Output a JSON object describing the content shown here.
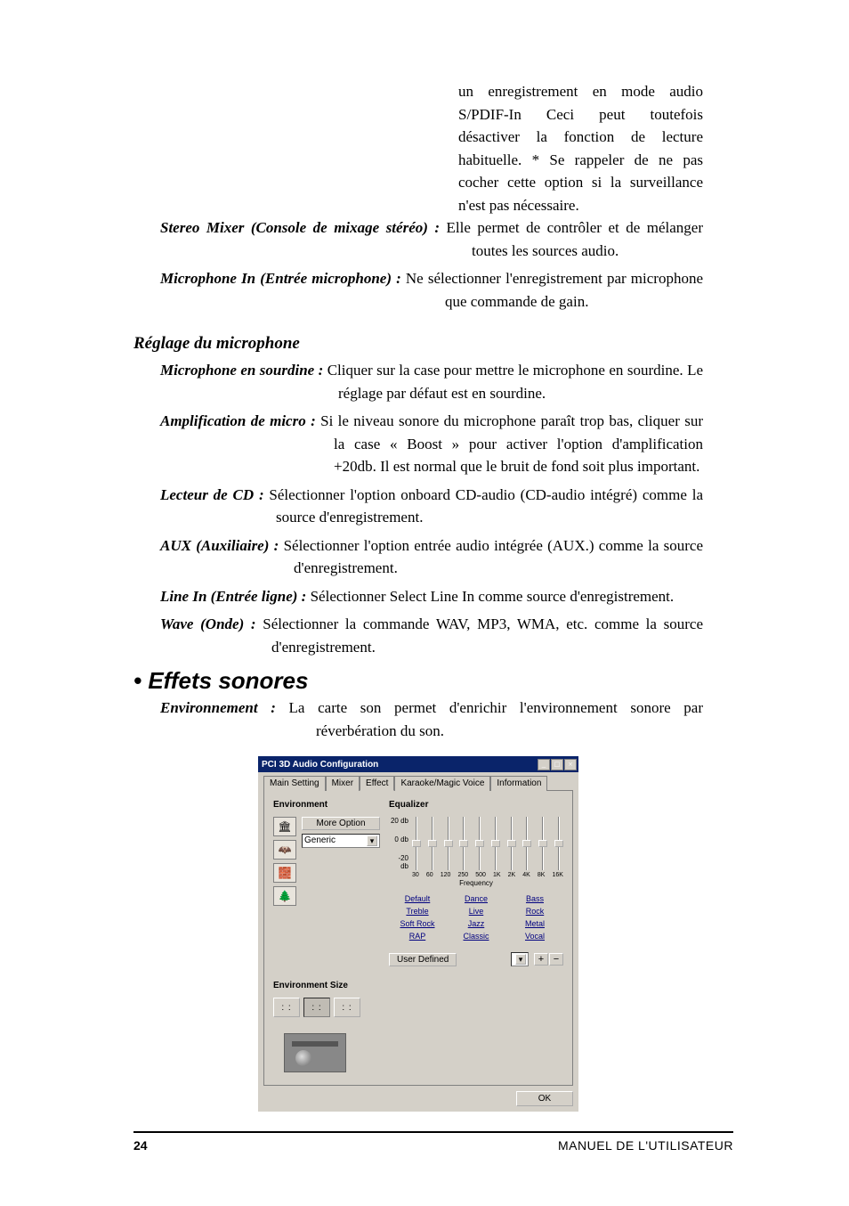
{
  "intro_block": {
    "text1": "un enregistrement en mode audio S/PDIF-In Ceci peut toutefois désactiver la fonction de lecture habituelle. * Se rappeler de ne pas cocher cette option si la surveillance n'est pas nécessaire.",
    "left_pad": "365px"
  },
  "items": [
    {
      "term": "Stereo Mixer (Console de mixage stéréo) : ",
      "body": "Elle permet de contrôler et de mélanger toutes les sources audio.",
      "rest_indent": "380px",
      "first_indent": "30px"
    },
    {
      "term": "Microphone In (Entrée microphone) : ",
      "body": "Ne sélectionner l'enregistrement par microphone que commande de gain.",
      "rest_indent": "350px",
      "first_indent": "30px"
    }
  ],
  "mic_heading": "Réglage du microphone",
  "mic_items": [
    {
      "term": "Microphone en sourdine : ",
      "body": "Cliquer sur la case pour mettre le microphone en sourdine. Le réglage par défaut est en sourdine.",
      "rest_indent": "230px",
      "first_indent": "30px"
    },
    {
      "term": "Amplification de micro : ",
      "body": "Si le niveau sonore du microphone paraît trop bas, cliquer sur la case « Boost » pour activer l'option d'amplification +20db. Il est normal que le bruit de fond soit plus important.",
      "rest_indent": "225px",
      "first_indent": "30px"
    },
    {
      "term": "Lecteur de CD : ",
      "body": "Sélectionner l'option onboard CD-audio (CD-audio intégré) comme la source d'enregistrement.",
      "rest_indent": "160px",
      "first_indent": "30px"
    },
    {
      "term": "AUX (Auxiliaire) : ",
      "body": "Sélectionner l'option entrée audio intégrée (AUX.) comme la source d'enregistrement.",
      "rest_indent": "180px",
      "first_indent": "30px"
    },
    {
      "term": "Line In (Entrée ligne) : ",
      "body": "Sélectionner Select Line In comme source d'enregistrement.",
      "rest_indent": "225px",
      "first_indent": "30px"
    },
    {
      "term": "Wave (Onde) : ",
      "body": "Sélectionner la commande WAV, MP3, WMA, etc. comme la source d'enregistrement.",
      "rest_indent": "155px",
      "first_indent": "30px"
    }
  ],
  "effets_heading": "• Effets sonores",
  "env_item": {
    "term": "Environnement : ",
    "body": "La carte son permet d'enrichir l'environnement sonore par réverbération du son.",
    "rest_indent": "205px",
    "first_indent": "30px"
  },
  "dialog": {
    "title": "PCI 3D Audio Configuration",
    "tabs": [
      "Main Setting",
      "Mixer",
      "Effect",
      "Karaoke/Magic Voice",
      "Information"
    ],
    "active_tab": 2,
    "env": {
      "title": "Environment",
      "more_btn": "More Option",
      "preset": "Generic"
    },
    "env_size_title": "Environment Size",
    "eq": {
      "title": "Equalizer",
      "y_top": "20 db",
      "y_mid": "0 db",
      "y_bot": "-20 db",
      "x": [
        "30",
        "60",
        "120",
        "250",
        "500",
        "1K",
        "2K",
        "4K",
        "8K",
        "16K"
      ],
      "freq_label": "Frequency"
    },
    "presets": [
      "Default",
      "Dance",
      "Bass",
      "Treble",
      "Live",
      "Rock",
      "Soft Rock",
      "Jazz",
      "Metal",
      "RAP",
      "Classic",
      "Vocal"
    ],
    "user_defined": "User Defined",
    "ok": "OK"
  },
  "footer": {
    "page": "24",
    "manual": "MANUEL DE L'UTILISATEUR"
  }
}
